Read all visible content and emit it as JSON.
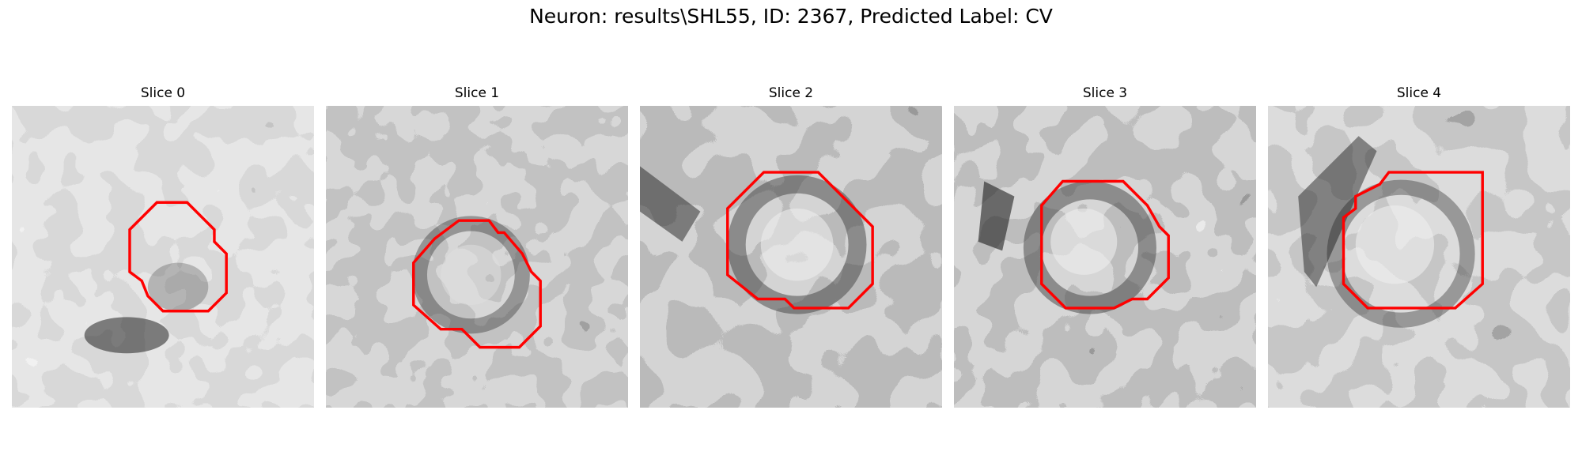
{
  "figure": {
    "title": "Neuron: results\\SHL55, ID: 2367, Predicted Label: CV"
  },
  "panels": [
    {
      "title": "Slice 0"
    },
    {
      "title": "Slice 1"
    },
    {
      "title": "Slice 2"
    },
    {
      "title": "Slice 3"
    },
    {
      "title": "Slice 4"
    }
  ],
  "colors": {
    "contour": "#ff0000",
    "background": "#ffffff",
    "text": "#000000"
  }
}
